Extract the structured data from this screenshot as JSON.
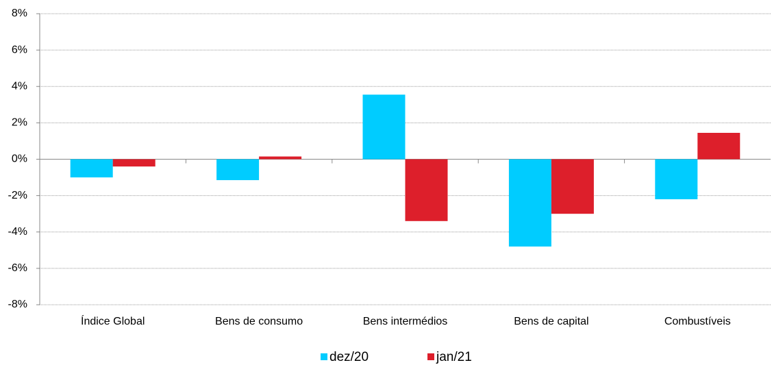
{
  "chart_data": {
    "type": "bar",
    "categories": [
      "Índice Global",
      "Bens de consumo",
      "Bens intermédios",
      "Bens de capital",
      "Combustíveis"
    ],
    "series": [
      {
        "name": "dez/20",
        "color": "#00ccff",
        "values": [
          -1.0,
          -1.15,
          3.55,
          -4.8,
          -2.2
        ]
      },
      {
        "name": "jan/21",
        "color": "#dd1f2b",
        "values": [
          -0.4,
          0.15,
          -3.4,
          -3.0,
          1.45
        ]
      }
    ],
    "ylim": [
      -8,
      8
    ],
    "yticks": [
      {
        "value": -8,
        "label": "-8%"
      },
      {
        "value": -6,
        "label": "-6%"
      },
      {
        "value": -4,
        "label": "-4%"
      },
      {
        "value": -2,
        "label": "-2%"
      },
      {
        "value": 0,
        "label": "0%"
      },
      {
        "value": 2,
        "label": "2%"
      },
      {
        "value": 4,
        "label": "4%"
      },
      {
        "value": 6,
        "label": "6%"
      },
      {
        "value": 8,
        "label": "8%"
      }
    ],
    "grid": true
  }
}
